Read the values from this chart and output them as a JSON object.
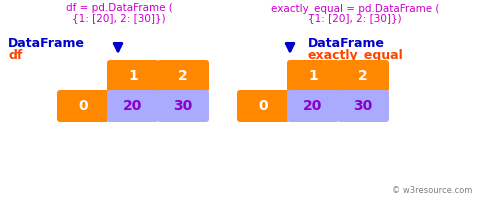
{
  "bg_color": "#ffffff",
  "orange": "#ff8800",
  "lavender": "#aaaaff",
  "blue": "#0000cc",
  "red_orange": "#ff4400",
  "magenta": "#cc00cc",
  "purple_text": "#8800cc",
  "watermark": "© w3resource.com",
  "title1_line1": "df = pd.DataFrame (",
  "title1_line2": "{1: [20], 2: [30]})",
  "title1_line2_mixed": true,
  "title2_line1": "exactly_equal = pd.DataFrame (",
  "title2_line2": "{1: [20], 2: [30]})",
  "label1_df": "DataFrame",
  "label1_var": "df",
  "label2_df": "DataFrame",
  "label2_var": "exactly_equal",
  "col_headers": [
    "1",
    "2"
  ],
  "row_index": [
    "0"
  ],
  "values": [
    [
      "20",
      "30"
    ]
  ]
}
